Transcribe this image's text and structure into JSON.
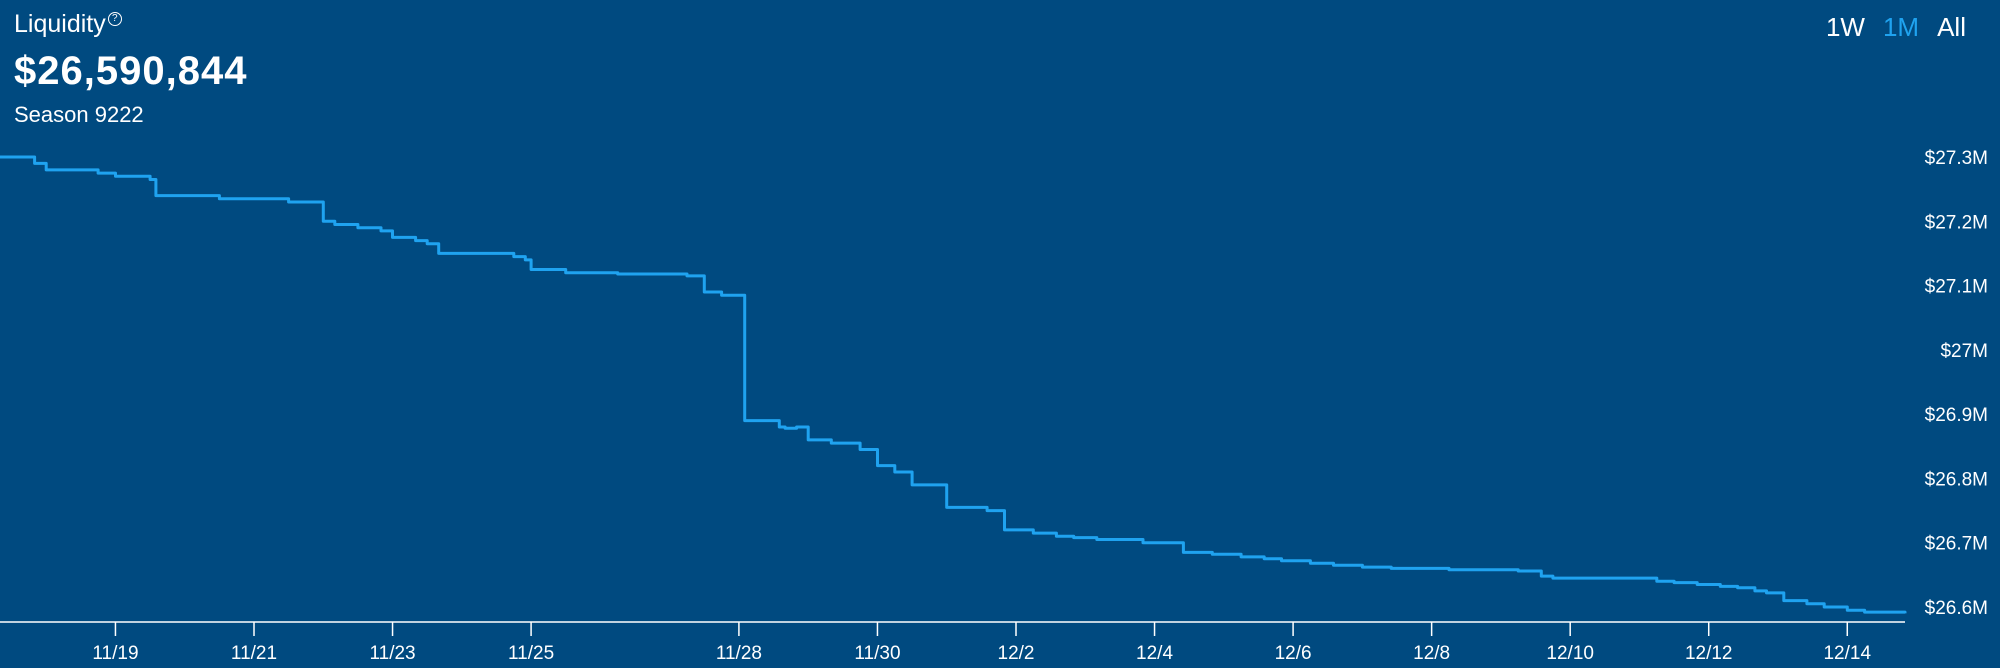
{
  "header": {
    "label": "Liquidity",
    "help_icon": "help-circle-icon",
    "value": "$26,590,844",
    "season": "Season 9222"
  },
  "range_tabs": [
    {
      "label": "1W",
      "active": false
    },
    {
      "label": "1M",
      "active": true
    },
    {
      "label": "All",
      "active": false
    }
  ],
  "colors": {
    "background": "#004a80",
    "line": "#1fa3f0",
    "text": "#ffffff",
    "active_tab": "#1fa3f0"
  },
  "chart_data": {
    "type": "line",
    "title": "",
    "xlabel": "",
    "ylabel": "",
    "ylim": [
      26.585,
      27.3
    ],
    "y_unit": "M",
    "y_ticks": [
      26.6,
      26.7,
      26.8,
      26.9,
      27.0,
      27.1,
      27.2,
      27.3
    ],
    "y_tick_labels": [
      "$26.6M",
      "$26.7M",
      "$26.8M",
      "$26.9M",
      "$27M",
      "$27.1M",
      "$27.2M",
      "$27.3M"
    ],
    "x_range": [
      "11/17 08:00",
      "12/14 20:00"
    ],
    "x_ticks": [
      "11/19",
      "11/21",
      "11/23",
      "11/25",
      "11/28",
      "11/30",
      "12/2",
      "12/4",
      "12/6",
      "12/8",
      "12/10",
      "12/12",
      "12/14"
    ],
    "grid": false,
    "legend": "none",
    "series": [
      {
        "x": [
          "11/17 08:00",
          "11/17 10:00",
          "11/17 20:00",
          "11/18 00:00",
          "11/18 08:00",
          "11/18 18:00",
          "11/19 00:00",
          "11/19 12:00",
          "11/19 14:00",
          "11/20 04:00",
          "11/20 12:00",
          "11/21 00:00",
          "11/21 06:00",
          "11/21 12:00",
          "11/22 00:00",
          "11/22 04:00",
          "11/22 12:00",
          "11/22 20:00",
          "11/23 00:00",
          "11/23 08:00",
          "11/23 12:00",
          "11/23 16:00",
          "11/24 00:00",
          "11/24 08:00",
          "11/24 18:00",
          "11/24 22:00",
          "11/25 00:00",
          "11/25 12:00",
          "11/26 00:00",
          "11/26 06:00",
          "11/26 12:00",
          "11/26 18:00",
          "11/27 00:00",
          "11/27 06:00",
          "11/27 12:00",
          "11/27 16:00",
          "11/27 18:00",
          "11/28 02:00",
          "11/28 14:00",
          "11/28 16:00",
          "11/28 20:00",
          "11/29 00:00",
          "11/29 08:00",
          "11/29 18:00",
          "11/30 00:00",
          "11/30 06:00",
          "11/30 12:00",
          "11/30 18:00",
          "12/1 00:00",
          "12/1 06:00",
          "12/1 14:00",
          "12/1 20:00",
          "12/2 06:00",
          "12/2 14:00",
          "12/2 20:00",
          "12/3 04:00",
          "12/3 10:00",
          "12/3 20:00",
          "12/4 10:00",
          "12/4 20:00",
          "12/5 06:00",
          "12/5 14:00",
          "12/5 20:00",
          "12/6 06:00",
          "12/6 14:00",
          "12/7 00:00",
          "12/7 10:00",
          "12/7 18:00",
          "12/8 06:00",
          "12/8 18:00",
          "12/9 06:00",
          "12/9 14:00",
          "12/9 18:00",
          "12/10 00:00",
          "12/10 10:00",
          "12/10 20:00",
          "12/11 06:00",
          "12/11 12:00",
          "12/11 20:00",
          "12/12 04:00",
          "12/12 10:00",
          "12/12 16:00",
          "12/12 20:00",
          "12/13 02:00",
          "12/13 10:00",
          "12/13 16:00",
          "12/14 00:00",
          "12/14 06:00",
          "12/14 20:00"
        ],
        "y": [
          27.3,
          27.3,
          27.29,
          27.28,
          27.28,
          27.275,
          27.27,
          27.265,
          27.24,
          27.24,
          27.235,
          27.235,
          27.235,
          27.23,
          27.2,
          27.195,
          27.19,
          27.185,
          27.175,
          27.17,
          27.165,
          27.15,
          27.15,
          27.15,
          27.145,
          27.14,
          27.125,
          27.12,
          27.12,
          27.118,
          27.118,
          27.118,
          27.118,
          27.115,
          27.09,
          27.09,
          27.085,
          26.89,
          26.88,
          26.878,
          26.88,
          26.86,
          26.855,
          26.845,
          26.82,
          26.81,
          26.79,
          26.79,
          26.755,
          26.755,
          26.75,
          26.72,
          26.715,
          26.71,
          26.708,
          26.705,
          26.705,
          26.7,
          26.685,
          26.682,
          26.678,
          26.675,
          26.672,
          26.668,
          26.665,
          26.662,
          26.66,
          26.66,
          26.658,
          26.658,
          26.656,
          26.648,
          26.645,
          26.645,
          26.645,
          26.645,
          26.64,
          26.638,
          26.635,
          26.632,
          26.63,
          26.625,
          26.622,
          26.61,
          26.605,
          26.6,
          26.595,
          26.592,
          26.59
        ]
      }
    ]
  }
}
